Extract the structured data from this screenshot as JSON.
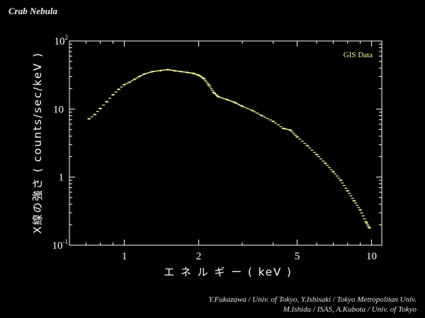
{
  "header": {
    "title": "Crab Nebula"
  },
  "credits": {
    "line1": "Y.Fukazawa / Univ. of Tokyo,   Y.Ishisaki / Tokyo Metropolitan Univ.",
    "line2": "M.Ishida / ISAS,   A.Kubota / Univ. of Tokyo"
  },
  "colors": {
    "background": "#000000",
    "axes": "#ffffff",
    "data": "#ffff99"
  },
  "chart_data": {
    "type": "scatter",
    "title": "Crab Nebula",
    "xlabel": "エ ネ ル ギ ー ( keV )",
    "ylabel": "X線の強さ ( counts/sec/keV )",
    "xscale": "log",
    "yscale": "log",
    "xlim": [
      0.6,
      11
    ],
    "ylim": [
      0.1,
      100
    ],
    "x_ticks": [
      {
        "value": 1,
        "label": "1"
      },
      {
        "value": 2,
        "label": "2"
      },
      {
        "value": 5,
        "label": "5"
      },
      {
        "value": 10,
        "label": "10"
      }
    ],
    "y_ticks": [
      {
        "value": 0.1,
        "base": "10",
        "exp": "-1"
      },
      {
        "value": 1,
        "base": "1",
        "exp": ""
      },
      {
        "value": 10,
        "base": "10",
        "exp": ""
      },
      {
        "value": 100,
        "base": "10",
        "exp": "2"
      }
    ],
    "legend": {
      "label": "GIS Data",
      "position": "top-right"
    },
    "grid": false,
    "series": [
      {
        "name": "GIS Data",
        "x": [
          0.72,
          0.76,
          0.8,
          0.85,
          0.9,
          0.95,
          1.0,
          1.05,
          1.1,
          1.15,
          1.2,
          1.3,
          1.4,
          1.5,
          1.6,
          1.7,
          1.8,
          1.9,
          2.0,
          2.1,
          2.2,
          2.3,
          2.4,
          2.6,
          2.8,
          3.0,
          3.3,
          3.6,
          4.0,
          4.4,
          4.7,
          5.0,
          5.5,
          6.0,
          6.5,
          7.0,
          7.5,
          8.0,
          8.5,
          9.0,
          9.5,
          9.8
        ],
        "y": [
          7.2,
          8.3,
          10.2,
          12.8,
          16.2,
          19.5,
          22.8,
          24.8,
          27.3,
          30.0,
          32.5,
          35.5,
          36.8,
          38.0,
          36.5,
          35.5,
          34.5,
          33.5,
          31.5,
          28.0,
          22.5,
          17.5,
          15.2,
          13.8,
          12.5,
          11.0,
          9.5,
          8.0,
          6.6,
          5.2,
          4.9,
          3.9,
          2.9,
          2.15,
          1.6,
          1.2,
          0.9,
          0.63,
          0.45,
          0.33,
          0.22,
          0.18
        ]
      }
    ]
  }
}
